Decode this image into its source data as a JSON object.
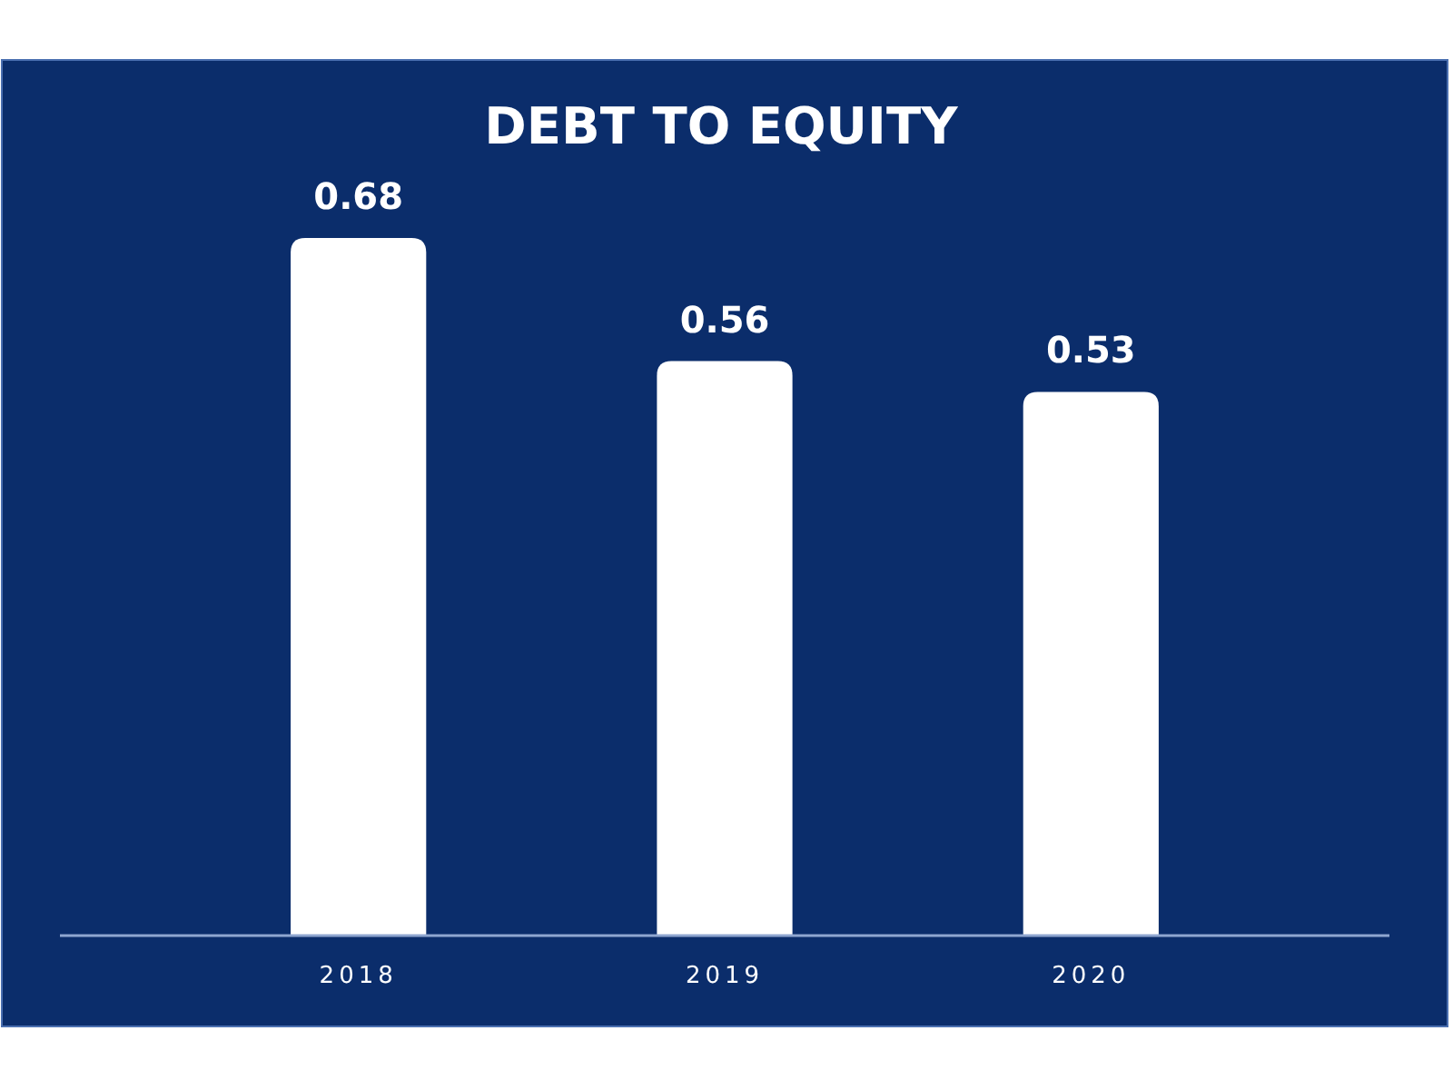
{
  "chart_data": {
    "type": "bar",
    "title": "DEBT TO EQUITY",
    "categories": [
      "2018",
      "2019",
      "2020"
    ],
    "values": [
      0.68,
      0.56,
      0.53
    ],
    "color": "#ffffff",
    "data_labels": true
  }
}
